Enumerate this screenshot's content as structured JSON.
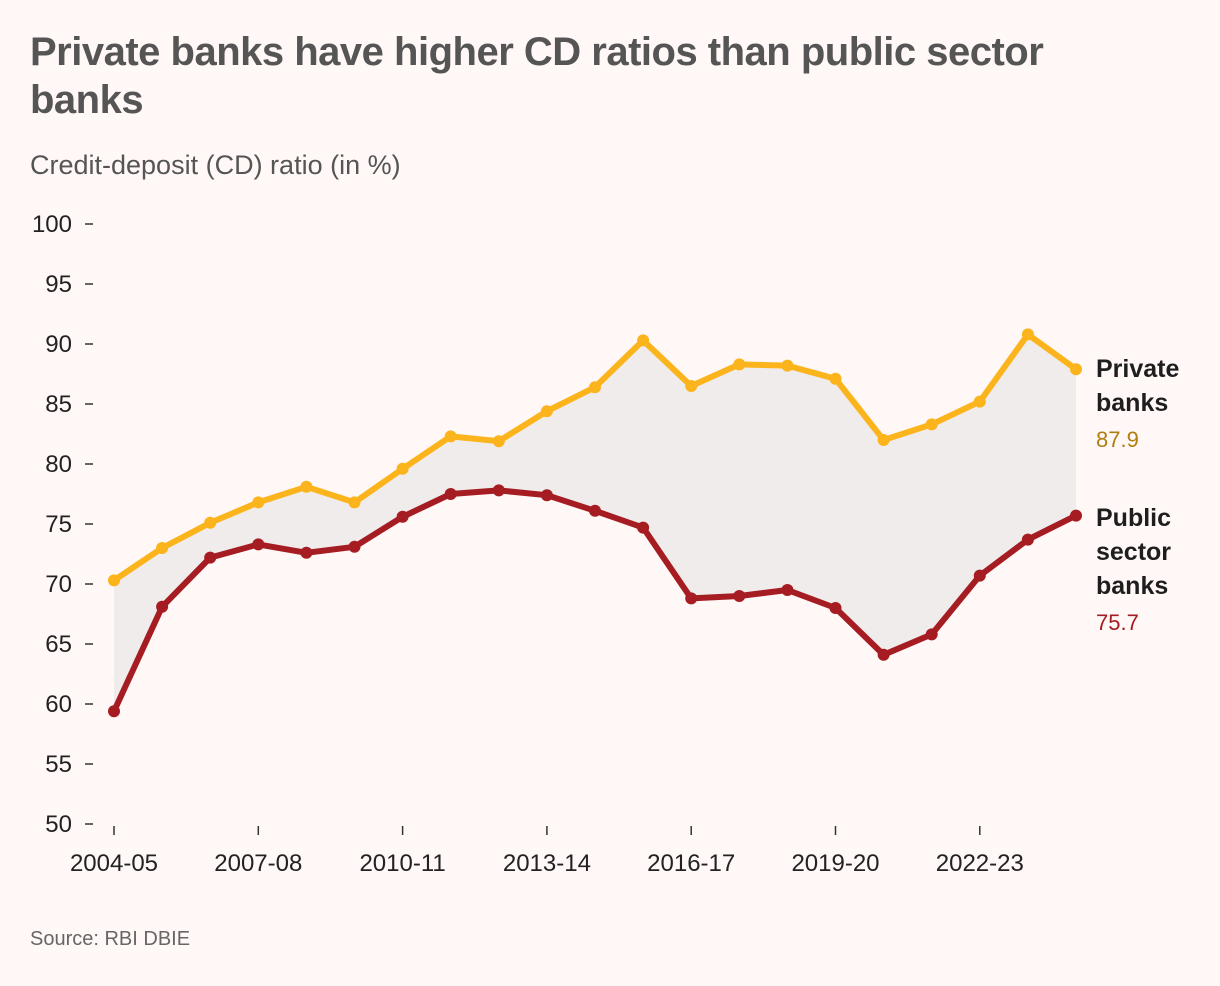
{
  "header": {
    "title": "Private banks have higher CD ratios than public sector banks",
    "subtitle": "Credit-deposit (CD) ratio (in %)"
  },
  "footer": {
    "source": "Source: RBI DBIE"
  },
  "colors": {
    "private": "#fbb41c",
    "public": "#a51c22",
    "band": "#efeceb",
    "axis": "#333333"
  },
  "chart_data": {
    "type": "line",
    "title": "Private banks have higher CD ratios than public sector banks",
    "ylabel": "Credit-deposit (CD) ratio (in %)",
    "ylim": [
      50,
      100
    ],
    "yticks": [
      50,
      55,
      60,
      65,
      70,
      75,
      80,
      85,
      90,
      95,
      100
    ],
    "x": [
      "2004-05",
      "2005-06",
      "2006-07",
      "2007-08",
      "2008-09",
      "2009-10",
      "2010-11",
      "2011-12",
      "2012-13",
      "2013-14",
      "2014-15",
      "2015-16",
      "2016-17",
      "2017-18",
      "2018-19",
      "2019-20",
      "2020-21",
      "2021-22",
      "2022-23",
      "2023-24",
      "2024-25"
    ],
    "xtick_labels": [
      "2004-05",
      "2007-08",
      "2010-11",
      "2013-14",
      "2016-17",
      "2019-20",
      "2022-23"
    ],
    "grid": false,
    "series": [
      {
        "key": "private",
        "name_lines": [
          "Private",
          "banks"
        ],
        "last_value_label": "87.9",
        "values": [
          70.3,
          73.0,
          75.1,
          76.8,
          78.1,
          76.8,
          79.6,
          82.3,
          81.9,
          84.4,
          86.4,
          90.3,
          86.5,
          88.3,
          88.2,
          87.1,
          82.0,
          83.3,
          85.2,
          90.8,
          87.9
        ]
      },
      {
        "key": "public",
        "name_lines": [
          "Public",
          "sector",
          "banks"
        ],
        "last_value_label": "75.7",
        "values": [
          59.4,
          68.1,
          72.2,
          73.3,
          72.6,
          73.1,
          75.6,
          77.5,
          77.8,
          77.4,
          76.1,
          74.7,
          68.8,
          69.0,
          69.5,
          68.0,
          64.1,
          65.8,
          70.7,
          73.7,
          75.7
        ]
      }
    ]
  }
}
